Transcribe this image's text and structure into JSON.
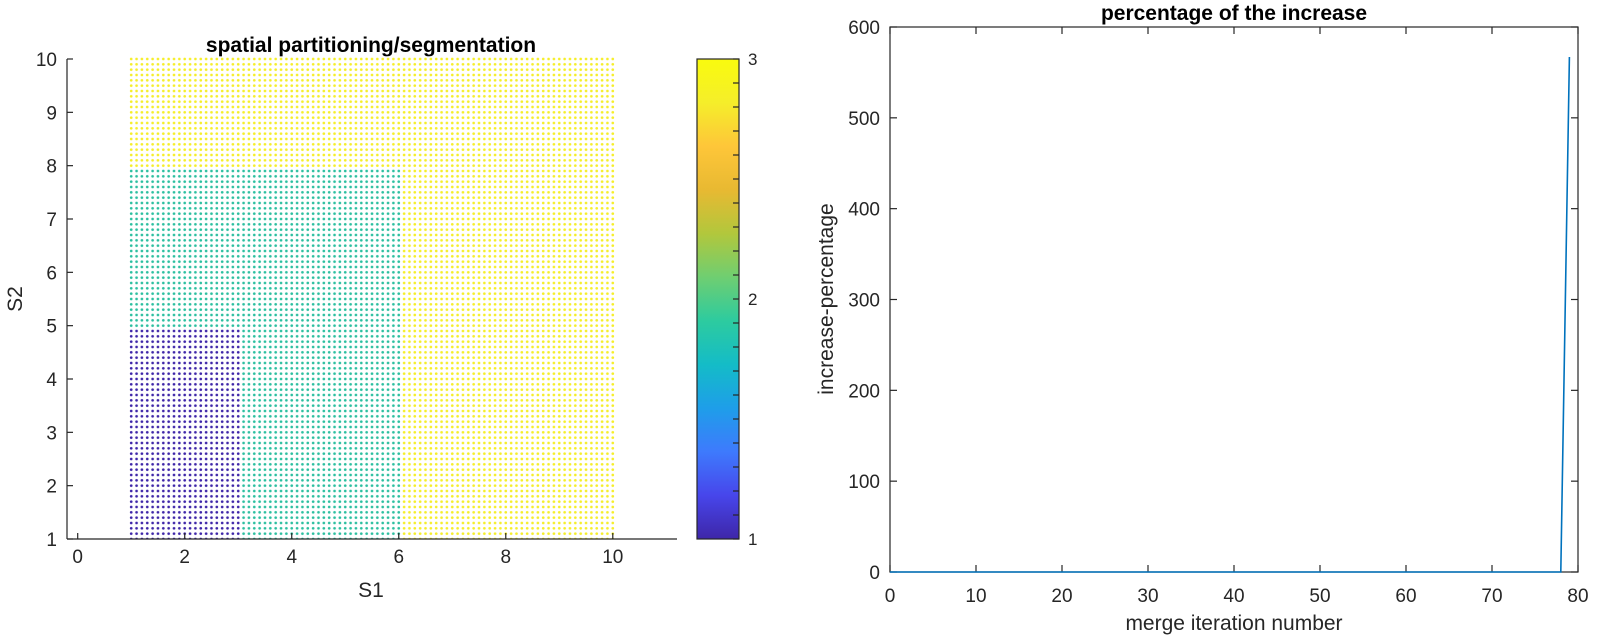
{
  "chart_data": [
    {
      "type": "scatter",
      "title": "spatial partitioning/segmentation",
      "xlabel": "S1",
      "ylabel": "S2",
      "xlim": [
        -0.2,
        11.2
      ],
      "ylim": [
        1,
        10
      ],
      "xticks": [
        0,
        2,
        4,
        6,
        8,
        10
      ],
      "yticks": [
        1,
        2,
        3,
        4,
        5,
        6,
        7,
        8,
        9,
        10
      ],
      "grid": false,
      "grid_step": 0.1,
      "regions": [
        {
          "label": 1,
          "x_range": [
            1,
            3
          ],
          "y_range": [
            1,
            4.9
          ],
          "color": "#3e26a8"
        },
        {
          "label": 2,
          "x_range": [
            1,
            6
          ],
          "y_range": [
            1,
            7.9
          ],
          "color": "#2cbfa0"
        },
        {
          "label": 3,
          "x_range": [
            1,
            10
          ],
          "y_range": [
            1,
            10
          ],
          "color": "#f5ee2a"
        }
      ],
      "colorbar": {
        "range": [
          1,
          3
        ],
        "ticks": [
          1,
          2,
          3
        ],
        "colormap": [
          "#3e26a8",
          "#4746eb",
          "#3e7afd",
          "#1e9ee9",
          "#14bcc7",
          "#2dcb9f",
          "#6fce71",
          "#b2c73c",
          "#e8b932",
          "#fec639",
          "#f5ee2a",
          "#f9fb0e"
        ],
        "placement": "right"
      }
    },
    {
      "type": "line",
      "title": "percentage of the increase",
      "xlabel": "merge iteration number",
      "ylabel": "increase-percentage",
      "xlim": [
        0,
        80
      ],
      "ylim": [
        0,
        600
      ],
      "xticks": [
        0,
        10,
        20,
        30,
        40,
        50,
        60,
        70,
        80
      ],
      "yticks": [
        0,
        100,
        200,
        300,
        400,
        500,
        600
      ],
      "grid": false,
      "series": [
        {
          "color": "#0072bd",
          "x": [
            0,
            10,
            20,
            30,
            40,
            50,
            60,
            70,
            78,
            79
          ],
          "y": [
            0,
            0,
            0,
            0,
            0,
            0,
            0,
            0,
            0,
            567
          ]
        }
      ]
    }
  ]
}
